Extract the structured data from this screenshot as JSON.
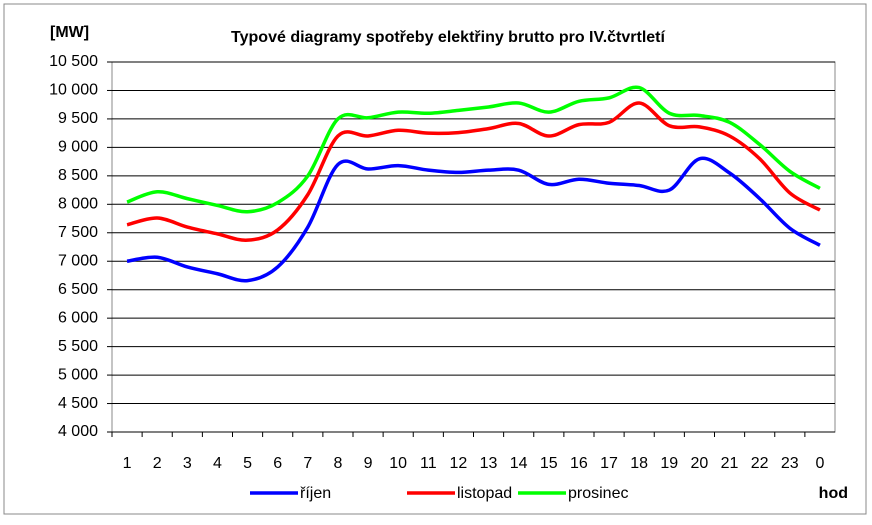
{
  "chart_data": {
    "type": "line",
    "title": "Typové diagramy spotřeby elektřiny brutto pro IV.čtvrtletí",
    "y_label": "[MW]",
    "x_label": "hod",
    "categories": [
      "1",
      "2",
      "3",
      "4",
      "5",
      "6",
      "7",
      "8",
      "9",
      "10",
      "11",
      "12",
      "13",
      "14",
      "15",
      "16",
      "17",
      "18",
      "19",
      "20",
      "21",
      "22",
      "23",
      "0"
    ],
    "series": [
      {
        "name": "říjen",
        "color": "#0000ff",
        "values": [
          7000,
          7070,
          6900,
          6780,
          6660,
          6900,
          7600,
          8700,
          8620,
          8680,
          8600,
          8560,
          8600,
          8600,
          8350,
          8440,
          8370,
          8330,
          8250,
          8800,
          8550,
          8100,
          7580,
          7280
        ]
      },
      {
        "name": "listopad",
        "color": "#ff0000",
        "values": [
          7640,
          7760,
          7600,
          7480,
          7370,
          7550,
          8170,
          9200,
          9200,
          9300,
          9250,
          9260,
          9330,
          9420,
          9200,
          9400,
          9440,
          9780,
          9380,
          9360,
          9200,
          8800,
          8200,
          7900
        ]
      },
      {
        "name": "prosinec",
        "color": "#00ff00",
        "values": [
          8040,
          8220,
          8100,
          7980,
          7870,
          8030,
          8500,
          9500,
          9520,
          9620,
          9600,
          9650,
          9710,
          9780,
          9620,
          9810,
          9870,
          10050,
          9600,
          9560,
          9440,
          9050,
          8580,
          8280
        ]
      }
    ],
    "ylim": [
      4000,
      10500
    ],
    "yticks": [
      {
        "value": 4000,
        "label": "4 000"
      },
      {
        "value": 4500,
        "label": "4 500"
      },
      {
        "value": 5000,
        "label": "5 000"
      },
      {
        "value": 5500,
        "label": "5 500"
      },
      {
        "value": 6000,
        "label": "6 000"
      },
      {
        "value": 6500,
        "label": "6 500"
      },
      {
        "value": 7000,
        "label": "7 000"
      },
      {
        "value": 7500,
        "label": "7 500"
      },
      {
        "value": 8000,
        "label": "8 000"
      },
      {
        "value": 8500,
        "label": "8 500"
      },
      {
        "value": 9000,
        "label": "9 000"
      },
      {
        "value": 9500,
        "label": "9 500"
      },
      {
        "value": 10000,
        "label": "10 000"
      },
      {
        "value": 10500,
        "label": "10 500"
      }
    ],
    "grid": true,
    "legend": "bottom"
  }
}
